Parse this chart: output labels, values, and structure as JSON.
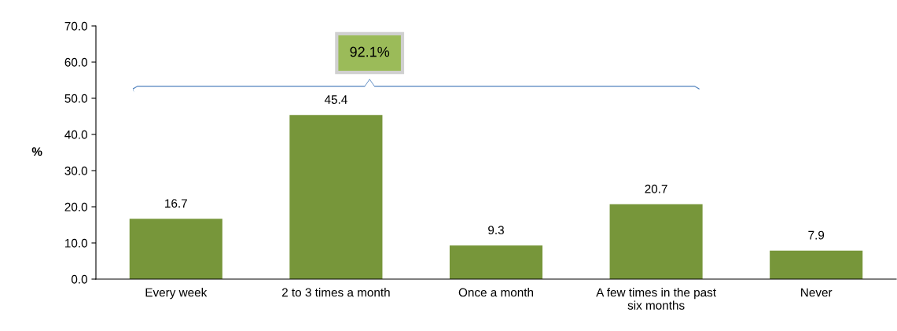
{
  "chart_data": {
    "type": "bar",
    "categories": [
      "Every week",
      "2 to 3 times a month",
      "Once a month",
      "A few times in the past six months",
      "Never"
    ],
    "values": [
      16.7,
      45.4,
      9.3,
      20.7,
      7.9
    ],
    "color": "#77963a",
    "ylabel": "%",
    "ylim": [
      0,
      70
    ],
    "yticks": [
      {
        "value": 0,
        "label": "0.0"
      },
      {
        "value": 10,
        "label": "10.0"
      },
      {
        "value": 20,
        "label": "20.0"
      },
      {
        "value": 30,
        "label": "30.0"
      },
      {
        "value": 40,
        "label": "40.0"
      },
      {
        "value": 50,
        "label": "50.0"
      },
      {
        "value": 60,
        "label": "60.0"
      },
      {
        "value": 70,
        "label": "70.0"
      }
    ],
    "data_labels": true,
    "grid": false,
    "legend": false,
    "annotations": [
      "92.1%"
    ]
  }
}
